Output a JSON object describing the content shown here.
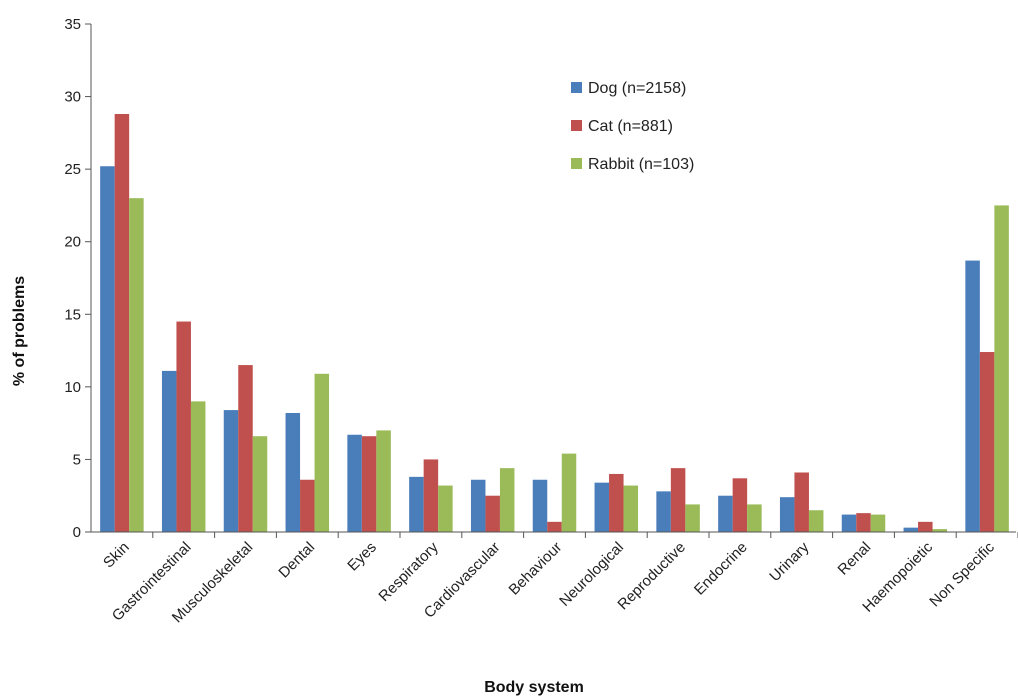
{
  "chart_data": {
    "type": "bar",
    "title": "",
    "xlabel": "Body system",
    "ylabel": "% of problems",
    "ylim": [
      0,
      35
    ],
    "yticks": [
      0,
      5,
      10,
      15,
      20,
      25,
      30,
      35
    ],
    "grid": false,
    "legend_position": "top-center",
    "categories": [
      "Skin",
      "Gastrointestinal",
      "Musculoskeletal",
      "Dental",
      "Eyes",
      "Respiratory",
      "Cardiovascular",
      "Behaviour",
      "Neurological",
      "Reproductive",
      "Endocrine",
      "Urinary",
      "Renal",
      "Haemopoietic",
      "Non Specific"
    ],
    "series": [
      {
        "name": "Dog (n=2158)",
        "color": "#4a7ebb",
        "values": [
          25.2,
          11.1,
          8.4,
          8.2,
          6.7,
          3.8,
          3.6,
          3.6,
          3.4,
          2.8,
          2.5,
          2.4,
          1.2,
          0.3,
          18.7
        ]
      },
      {
        "name": "Cat (n=881)",
        "color": "#c0504d",
        "values": [
          28.8,
          14.5,
          11.5,
          3.6,
          6.6,
          5.0,
          2.5,
          0.7,
          4.0,
          4.4,
          3.7,
          4.1,
          1.3,
          0.7,
          12.4
        ]
      },
      {
        "name": "Rabbit (n=103)",
        "color": "#9bbb59",
        "values": [
          23.0,
          9.0,
          6.6,
          10.9,
          7.0,
          3.2,
          4.4,
          5.4,
          3.2,
          1.9,
          1.9,
          1.5,
          1.2,
          0.2,
          22.5
        ]
      }
    ]
  }
}
